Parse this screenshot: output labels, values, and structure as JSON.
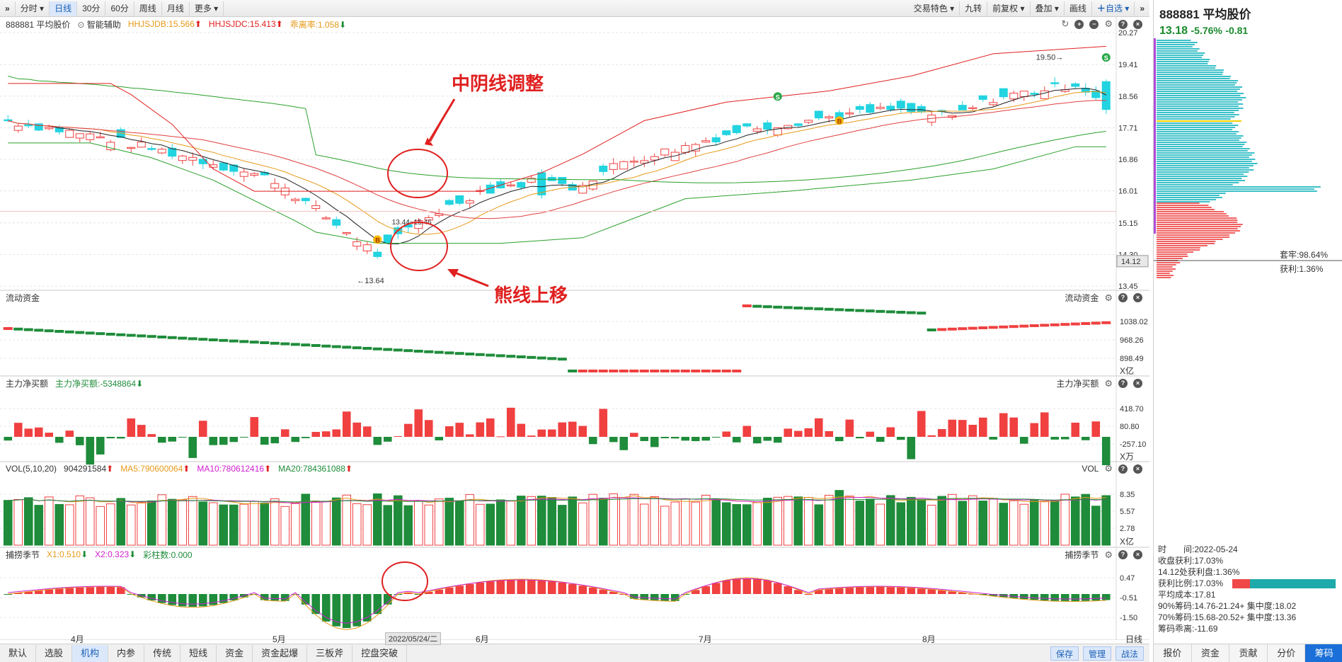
{
  "toolbar": {
    "left_tabs": [
      {
        "label": "分时",
        "active": false
      },
      {
        "label": "日线",
        "active": true
      },
      {
        "label": "30分",
        "active": false
      },
      {
        "label": "60分",
        "active": false
      },
      {
        "label": "周线",
        "active": false
      },
      {
        "label": "月线",
        "active": false
      },
      {
        "label": "更多",
        "active": false
      }
    ],
    "right_items": [
      "交易特色",
      "九转",
      "前复权",
      "叠加",
      "画线",
      "自选"
    ]
  },
  "main_panel": {
    "symbol": "888881 平均股价",
    "assist": "智能辅助",
    "hhjsjdb": "HHJSJDB:15.566",
    "hhjsjdc": "HHJSJDC:15.413",
    "envelope": "乖离率:1.058",
    "y_labels": [
      "20.27",
      "19.41",
      "18.56",
      "17.71",
      "16.86",
      "16.01",
      "15.15",
      "14.30",
      "13.45"
    ],
    "low_label": "←13.64",
    "high_label": "19.50→",
    "range_label": "13.44~15.46",
    "current_price_tag": "14.12",
    "buy_marker": "B",
    "sell_marker": "S"
  },
  "annotations": {
    "top_text": "中阴线调整",
    "bottom_text": "熊线上移"
  },
  "panels": [
    {
      "name": "流动资金",
      "right": "流动资金",
      "labels": [
        "1038.02",
        "968.26",
        "898.49",
        "X亿"
      ]
    },
    {
      "name": "主力净买额",
      "right": "主力净买额",
      "value": "主力净买额:-5348864",
      "labels": [
        "418.70",
        "80.80",
        "-257.10",
        "X万"
      ]
    },
    {
      "name": "VOL(5,10,20)",
      "right": "VOL",
      "value": "904291584",
      "ma5": "MA5:790600064",
      "ma10": "MA10:780612416",
      "ma20": "MA20:784361088",
      "labels": [
        "8.35",
        "5.57",
        "2.78",
        "X亿"
      ]
    },
    {
      "name": "捕捞季节",
      "right": "捕捞季节",
      "x1": "X1:0.510",
      "x2": "X2:0.323",
      "bars": "彩柱数:0.000",
      "labels": [
        "0.47",
        "-0.51",
        "-1.50"
      ]
    }
  ],
  "x_axis": {
    "months": [
      "4月",
      "5月",
      "6月",
      "7月",
      "8月"
    ],
    "cursor_date": "2022/05/24/二",
    "period": "日线"
  },
  "bottom_tabs": [
    {
      "label": "默认",
      "active": false
    },
    {
      "label": "选股",
      "active": false
    },
    {
      "label": "机构",
      "active": true
    },
    {
      "label": "内参",
      "active": false
    },
    {
      "label": "传统",
      "active": false
    },
    {
      "label": "短线",
      "active": false
    },
    {
      "label": "资金",
      "active": false
    },
    {
      "label": "资金起爆",
      "active": false
    },
    {
      "label": "三板斧",
      "active": false
    },
    {
      "label": "控盘突破",
      "active": false
    }
  ],
  "bottom_right": [
    "保存",
    "管理",
    "战法"
  ],
  "sidebar": {
    "title": "888881 平均股价",
    "price": "13.18",
    "change_pct": "-5.76%",
    "change": "-0.81",
    "trapped": "套牢:98.64%",
    "profit": "获利:1.36%",
    "info": [
      "时　　间:2022-05-24",
      "收盘获利:17.03%",
      "14.12处获利盘:1.36%",
      "获利比例:17.03%",
      "平均成本:17.81",
      "90%筹码:14.76-21.24+ 集中度:18.02",
      "70%筹码:15.68-20.52+ 集中度:13.36",
      "筹码乖离:-11.69"
    ],
    "profit_ratio": 0.1703,
    "tabs": [
      {
        "label": "报价",
        "active": false
      },
      {
        "label": "资金",
        "active": false
      },
      {
        "label": "贡献",
        "active": false
      },
      {
        "label": "分价",
        "active": false
      },
      {
        "label": "筹码",
        "active": true
      }
    ]
  },
  "colors": {
    "up": "#f04040",
    "down": "#1e8c3a",
    "cyan": "#22d3e0"
  }
}
